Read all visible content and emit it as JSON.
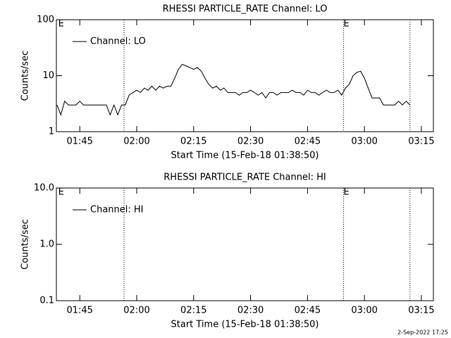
{
  "chart_data": [
    {
      "type": "line",
      "title": "RHESSI PARTICLE_RATE Channel: LO",
      "xlabel": "Start Time (15-Feb-18 01:38:50)",
      "ylabel": "Counts/sec",
      "log_y": true,
      "ylim": [
        1,
        100
      ],
      "yticks": [
        1,
        10,
        100
      ],
      "xlim": [
        "01:38:50",
        "03:18:10"
      ],
      "xticks": [
        "01:45",
        "02:00",
        "02:15",
        "02:30",
        "02:45",
        "03:00",
        "03:15"
      ],
      "legend": "upper left",
      "event_lines": [
        "01:56:40",
        "02:54:30",
        "03:12:00"
      ],
      "annotations": [
        {
          "text": "E",
          "x": "01:39:20"
        },
        {
          "text": "E",
          "x": "02:54:30"
        }
      ],
      "x": [
        "01:39",
        "01:40",
        "01:41",
        "01:42",
        "01:43",
        "01:44",
        "01:45",
        "01:46",
        "01:47",
        "01:48",
        "01:49",
        "01:50",
        "01:51",
        "01:52",
        "01:53",
        "01:54",
        "01:55",
        "01:56",
        "01:57",
        "01:58",
        "01:59",
        "02:00",
        "02:01",
        "02:02",
        "02:03",
        "02:04",
        "02:05",
        "02:06",
        "02:07",
        "02:08",
        "02:09",
        "02:10",
        "02:11",
        "02:12",
        "02:13",
        "02:14",
        "02:15",
        "02:16",
        "02:17",
        "02:18",
        "02:19",
        "02:20",
        "02:21",
        "02:22",
        "02:23",
        "02:24",
        "02:25",
        "02:26",
        "02:27",
        "02:28",
        "02:29",
        "02:30",
        "02:31",
        "02:32",
        "02:33",
        "02:34",
        "02:35",
        "02:36",
        "02:37",
        "02:38",
        "02:39",
        "02:40",
        "02:41",
        "02:42",
        "02:43",
        "02:44",
        "02:45",
        "02:46",
        "02:47",
        "02:48",
        "02:49",
        "02:50",
        "02:51",
        "02:52",
        "02:53",
        "02:54",
        "02:55",
        "02:56",
        "02:57",
        "02:58",
        "02:59",
        "03:00",
        "03:01",
        "03:02",
        "03:03",
        "03:04",
        "03:05",
        "03:06",
        "03:07",
        "03:08",
        "03:09",
        "03:10",
        "03:11",
        "03:12"
      ],
      "series": [
        {
          "name": "Channel: LO",
          "color": "#000000",
          "values": [
            3,
            2,
            3.5,
            3,
            3,
            3,
            3.5,
            3,
            3,
            3,
            3,
            3,
            3,
            3,
            2,
            3,
            2,
            3,
            3,
            4.5,
            5,
            5.5,
            5,
            6,
            5.5,
            6.5,
            5.5,
            6.5,
            6,
            6.5,
            6.5,
            9,
            13,
            16,
            15,
            14,
            13,
            14,
            12,
            9,
            7,
            6,
            6.5,
            5.5,
            6,
            5,
            5,
            5,
            4.5,
            5,
            5,
            5.5,
            5,
            4.5,
            5,
            4,
            5,
            5,
            4.5,
            5,
            5,
            5,
            5.5,
            5,
            5,
            4.5,
            5.5,
            5,
            5,
            4.5,
            5,
            5.5,
            5,
            5,
            5.5,
            4.5,
            6,
            7,
            10,
            11.5,
            12,
            9,
            6,
            4,
            4,
            4,
            3,
            3,
            3,
            3,
            3.5,
            3,
            3.5,
            3
          ]
        }
      ]
    },
    {
      "type": "line",
      "title": "RHESSI PARTICLE_RATE Channel: HI",
      "xlabel": "Start Time (15-Feb-18 01:38:50)",
      "ylabel": "Counts/sec",
      "log_y": true,
      "ylim": [
        0.1,
        10
      ],
      "yticks": [
        0.1,
        {
          "value": 1,
          "label": "1.0"
        },
        {
          "value": 10,
          "label": "10.0"
        }
      ],
      "xlim": [
        "01:38:50",
        "03:18:10"
      ],
      "xticks": [
        "01:45",
        "02:00",
        "02:15",
        "02:30",
        "02:45",
        "03:00",
        "03:15"
      ],
      "legend": "upper left",
      "event_lines": [
        "01:56:40",
        "02:54:30",
        "03:12:00"
      ],
      "annotations": [
        {
          "text": "E",
          "x": "01:39:20"
        },
        {
          "text": "E",
          "x": "02:54:30"
        }
      ],
      "x": [],
      "series": [
        {
          "name": "Channel: HI",
          "color": "#000000",
          "values": []
        }
      ]
    }
  ],
  "footer": "2-Sep-2022 17:25"
}
